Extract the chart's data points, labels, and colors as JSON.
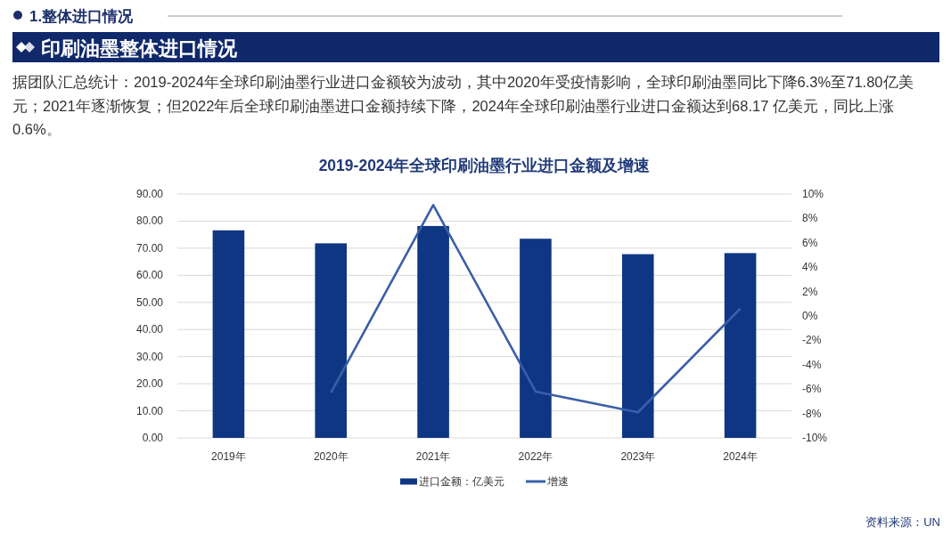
{
  "chart_data": {
    "type": "bar",
    "title": "2019-2024年全球印刷油墨行业进口金额及增速",
    "subtitle": "据团队汇总统计：2019-2024年全球印刷油墨行业进口金额较为波动，其中2020年受疫情影响，全球印刷油墨同比下降6.3%至71.80亿美元；2021年逐渐恢复；但2022年后全球印刷油墨进口金额持续下降，2024年全球印刷油墨行业进口金额达到68.17 亿美元，同比上涨0.6%。",
    "annotations": [
      "1.整体进口情况",
      "印刷油墨整体进口情况",
      "资料来源：UN"
    ],
    "categories": [
      "2019年",
      "2020年",
      "2021年",
      "2022年",
      "2023年",
      "2024年"
    ],
    "series": [
      {
        "name": "进口金额：亿美元",
        "color": "#0f3683",
        "values": [
          76.6,
          71.8,
          78.2,
          73.5,
          67.8,
          68.2
        ]
      },
      {
        "name": "增速",
        "type": "line",
        "axis": "y2",
        "color": "#3a5ea9",
        "values": [
          null,
          -6.3,
          9.1,
          -6.2,
          -7.9,
          0.6
        ]
      }
    ],
    "ylim": [
      0,
      90
    ],
    "yticks": [
      {
        "value": 0,
        "label": "0.00"
      },
      {
        "value": 10,
        "label": "10.00"
      },
      {
        "value": 20,
        "label": "20.00"
      },
      {
        "value": 30,
        "label": "30.00"
      },
      {
        "value": 40,
        "label": "40.00"
      },
      {
        "value": 50,
        "label": "50.00"
      },
      {
        "value": 60,
        "label": "60.00"
      },
      {
        "value": 70,
        "label": "70.00"
      },
      {
        "value": 80,
        "label": "80.00"
      },
      {
        "value": 90,
        "label": "90.00"
      }
    ],
    "y2lim": [
      -10,
      10
    ],
    "y2ticks": [
      {
        "value": -10,
        "label": "-10%"
      },
      {
        "value": -8,
        "label": "-8%"
      },
      {
        "value": -6,
        "label": "-6%"
      },
      {
        "value": -4,
        "label": "-4%"
      },
      {
        "value": -2,
        "label": "-2%"
      },
      {
        "value": 0,
        "label": "0%"
      },
      {
        "value": 2,
        "label": "2%"
      },
      {
        "value": 4,
        "label": "4%"
      },
      {
        "value": 6,
        "label": "6%"
      },
      {
        "value": 8,
        "label": "8%"
      },
      {
        "value": 10,
        "label": "10%"
      }
    ],
    "grid": "y",
    "legend": "bottom",
    "marker": "none",
    "line_style": "solid"
  }
}
